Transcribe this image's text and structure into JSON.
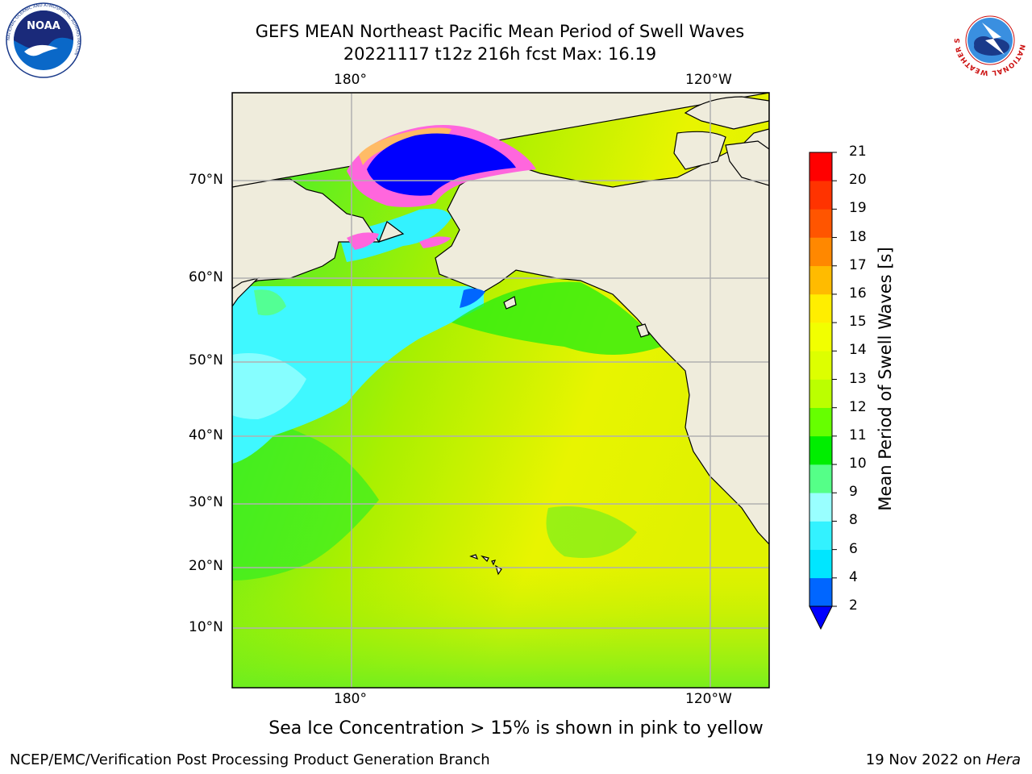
{
  "title": {
    "line1": "GEFS MEAN Northeast Pacific Mean Period of Swell Waves",
    "line2": "20221117 t12z 216h fcst   Max: 16.19"
  },
  "map": {
    "lon_labels_top": [
      "180°",
      "120°W"
    ],
    "lon_labels_bottom": [
      "180°",
      "120°W"
    ],
    "lat_labels": [
      "70°N",
      "60°N",
      "50°N",
      "40°N",
      "30°N",
      "20°N",
      "10°N"
    ],
    "land_color": "#efecdc",
    "ice_color": "#0000ff",
    "ice_edge_color": "#ff66dd"
  },
  "colorbar": {
    "label": "Mean Period of Swell Waves [s]",
    "ticks": [
      "2",
      "4",
      "6",
      "8",
      "9",
      "10",
      "11",
      "12",
      "13",
      "14",
      "15",
      "16",
      "17",
      "18",
      "19",
      "20",
      "21"
    ],
    "colors": [
      "#0066ff",
      "#00e6ff",
      "#33f2ff",
      "#99ffff",
      "#55ff88",
      "#00ee00",
      "#66ff00",
      "#bbff00",
      "#ddff00",
      "#f2ff00",
      "#ffee00",
      "#ffbb00",
      "#ff8800",
      "#ff5500",
      "#ff3300",
      "#ff0000"
    ],
    "extend_color": "#0000ff"
  },
  "caption": "Sea Ice Concentration > 15% is shown in pink to yellow",
  "footer": {
    "left": "NCEP/EMC/Verification Post Processing Product Generation Branch",
    "right_date": "19 Nov 2022 on ",
    "right_host": "Hera"
  },
  "logos": {
    "noaa_text": "NOAA",
    "noaa_ring_text": "NATIONAL OCEANIC AND ATMOSPHERIC ADMINISTRATION",
    "nws_ring_text": "NATIONAL WEATHER SERVICE"
  }
}
